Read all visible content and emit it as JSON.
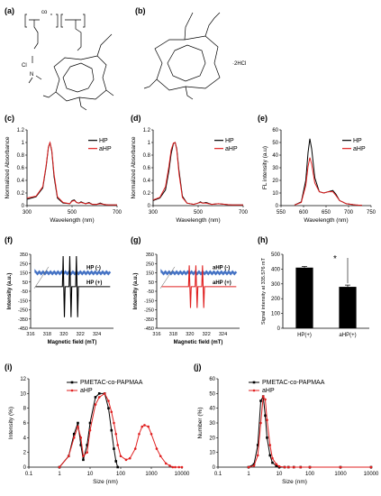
{
  "figure": {
    "panels": {
      "a": {
        "label": "(a)",
        "subscript_co": "co",
        "chloride": "Cl",
        "nitrogen": "N"
      },
      "b": {
        "label": "(b)",
        "salt": "·2HCl"
      },
      "c": {
        "label": "(c)"
      },
      "d": {
        "label": "(d)"
      },
      "e": {
        "label": "(e)"
      },
      "f": {
        "label": "(f)"
      },
      "g": {
        "label": "(g)"
      },
      "h": {
        "label": "(h)"
      },
      "i": {
        "label": "(i)"
      },
      "j": {
        "label": "(j)"
      }
    }
  },
  "chart_data": [
    {
      "panel": "c",
      "type": "line",
      "xlabel": "Wavelength (nm)",
      "ylabel": "Normalized Absorbance",
      "xlim": [
        300,
        700
      ],
      "ylim": [
        0,
        1.2
      ],
      "xticks": [
        "300",
        "500",
        "700"
      ],
      "yticks": [
        "0",
        "0.2",
        "0.4",
        "0.6",
        "0.8",
        "1",
        "1.2"
      ],
      "legend": "top-right",
      "series": [
        {
          "name": "HP",
          "color": "#000000",
          "x": [
            300,
            340,
            370,
            385,
            395,
            402,
            410,
            420,
            435,
            460,
            490,
            500,
            510,
            520,
            530,
            540,
            560,
            575,
            590,
            610,
            625,
            640,
            660,
            700
          ],
          "y": [
            0.1,
            0.14,
            0.28,
            0.62,
            0.92,
            1.0,
            0.86,
            0.46,
            0.12,
            0.04,
            0.03,
            0.08,
            0.09,
            0.05,
            0.04,
            0.06,
            0.03,
            0.05,
            0.02,
            0.02,
            0.04,
            0.02,
            0.01,
            0.01
          ]
        },
        {
          "name": "aHP",
          "color": "#e02020",
          "x": [
            300,
            340,
            370,
            385,
            395,
            402,
            410,
            420,
            435,
            460,
            490,
            500,
            510,
            520,
            530,
            540,
            560,
            575,
            590,
            610,
            625,
            640,
            660,
            700
          ],
          "y": [
            0.12,
            0.15,
            0.3,
            0.64,
            0.93,
            1.0,
            0.88,
            0.5,
            0.14,
            0.05,
            0.03,
            0.07,
            0.08,
            0.05,
            0.04,
            0.05,
            0.03,
            0.04,
            0.02,
            0.02,
            0.03,
            0.02,
            0.01,
            0.01
          ]
        }
      ]
    },
    {
      "panel": "d",
      "type": "line",
      "xlabel": "Wavelength (nm)",
      "ylabel": "Normalized Absorbance",
      "xlim": [
        300,
        700
      ],
      "ylim": [
        0,
        1.2
      ],
      "xticks": [
        "300",
        "500",
        "700"
      ],
      "yticks": [
        "0",
        "0.2",
        "0.4",
        "0.6",
        "0.8",
        "1",
        "1.2"
      ],
      "legend": "top-right",
      "series": [
        {
          "name": "HP",
          "color": "#000000",
          "x": [
            300,
            330,
            355,
            370,
            380,
            390,
            398,
            405,
            415,
            430,
            450,
            480,
            500,
            510,
            520,
            535,
            560,
            590,
            620,
            650,
            700
          ],
          "y": [
            0.08,
            0.12,
            0.25,
            0.55,
            0.82,
            0.98,
            1.0,
            0.9,
            0.55,
            0.15,
            0.04,
            0.02,
            0.04,
            0.06,
            0.04,
            0.05,
            0.02,
            0.03,
            0.02,
            0.01,
            0.01
          ]
        },
        {
          "name": "aHP",
          "color": "#e02020",
          "x": [
            300,
            330,
            355,
            370,
            380,
            390,
            398,
            405,
            415,
            430,
            450,
            480,
            500,
            510,
            520,
            535,
            560,
            590,
            620,
            650,
            700
          ],
          "y": [
            0.09,
            0.13,
            0.3,
            0.62,
            0.88,
            0.99,
            1.0,
            0.88,
            0.5,
            0.13,
            0.04,
            0.02,
            0.04,
            0.05,
            0.04,
            0.04,
            0.02,
            0.03,
            0.02,
            0.01,
            0.01
          ]
        }
      ]
    },
    {
      "panel": "e",
      "type": "line",
      "xlabel": "Wavelength (nm)",
      "ylabel": "FL intensity (a.u)",
      "xlim": [
        550,
        750
      ],
      "ylim": [
        0,
        60
      ],
      "xticks": [
        "550",
        "600",
        "650",
        "700",
        "750"
      ],
      "yticks": [
        "0",
        "10",
        "20",
        "30",
        "40",
        "50",
        "60"
      ],
      "legend": "top-right",
      "series": [
        {
          "name": "HP",
          "color": "#000000",
          "x": [
            580,
            595,
            605,
            610,
            614,
            618,
            625,
            635,
            645,
            655,
            665,
            672,
            680,
            695,
            715,
            730
          ],
          "y": [
            0.5,
            3,
            20,
            42,
            53,
            45,
            22,
            11,
            10,
            11,
            12,
            9,
            4,
            1.5,
            0.5,
            0.2
          ]
        },
        {
          "name": "aHP",
          "color": "#e02020",
          "x": [
            580,
            595,
            605,
            610,
            614,
            618,
            625,
            635,
            645,
            655,
            665,
            672,
            680,
            695,
            715,
            730
          ],
          "y": [
            0.5,
            2.5,
            16,
            31,
            38,
            33,
            18,
            11,
            10,
            11,
            11,
            8,
            4,
            1.5,
            0.5,
            0.2
          ]
        }
      ]
    },
    {
      "panel": "f",
      "type": "line",
      "xlabel": "Magnetic field (mT)",
      "ylabel": "Intensity (a.u.)",
      "xlim": [
        316,
        326
      ],
      "ylim": [
        -450,
        350
      ],
      "xticks": [
        "316",
        "318",
        "320",
        "322",
        "324"
      ],
      "yticks": [
        "350",
        "250",
        "150",
        "50",
        "-50",
        "-150",
        "-250",
        "-350",
        "-450"
      ],
      "legend": "inline",
      "series": [
        {
          "name": "HP (-)",
          "color": "#4472c4",
          "baseline": 150
        },
        {
          "name": "HP (+)",
          "color": "#000000",
          "baseline": 0,
          "peaks": [
            320,
            320.8,
            321.6
          ],
          "amplitude": 330
        }
      ]
    },
    {
      "panel": "g",
      "type": "line",
      "xlabel": "Magnetic field (mT)",
      "ylabel": "Intensity (a.u.)",
      "xlim": [
        316,
        326
      ],
      "ylim": [
        -450,
        350
      ],
      "xticks": [
        "316",
        "318",
        "320",
        "322",
        "324"
      ],
      "yticks": [
        "350",
        "250",
        "150",
        "50",
        "-50",
        "-150",
        "-250",
        "-350",
        "-450"
      ],
      "legend": "inline",
      "series": [
        {
          "name": "aHP (-)",
          "color": "#4472c4",
          "baseline": 150
        },
        {
          "name": "aHP (+)",
          "color": "#e02020",
          "baseline": 0,
          "peaks": [
            320,
            320.8,
            321.6
          ],
          "amplitude": 230
        }
      ]
    },
    {
      "panel": "h",
      "type": "bar",
      "ylabel": "Signal intensity at 335.576 mT",
      "categories": [
        "HP(+)",
        "aHP(+)"
      ],
      "values": [
        410,
        280
      ],
      "errors": [
        8,
        12
      ],
      "ylim": [
        0,
        500
      ],
      "yticks": [
        "0",
        "100",
        "200",
        "300",
        "400",
        "500"
      ],
      "significance": "*"
    },
    {
      "panel": "i",
      "type": "line",
      "xlabel": "Size (nm)",
      "ylabel": "Intensity (%)",
      "xscale": "log",
      "xlim": [
        0.1,
        10000
      ],
      "ylim": [
        0,
        12
      ],
      "xticks": [
        "0.1",
        "1",
        "10",
        "100",
        "1000",
        "10000"
      ],
      "yticks": [
        "0",
        "2",
        "4",
        "6",
        "8",
        "10",
        "12"
      ],
      "legend": "top-right",
      "series": [
        {
          "name": "PMETAC-co-PAPMAA",
          "color": "#000000",
          "x": [
            1,
            2,
            3,
            4,
            5,
            6,
            8,
            10,
            15,
            20,
            30,
            40,
            50,
            60,
            70,
            80
          ],
          "y": [
            0,
            1.5,
            4.5,
            6,
            3,
            1,
            3,
            6,
            9.5,
            10,
            10,
            8,
            5,
            2.5,
            0.8,
            0
          ]
        },
        {
          "name": "aHP",
          "color": "#e02020",
          "x": [
            1,
            2,
            3,
            4,
            5,
            6,
            8,
            10,
            15,
            20,
            30,
            40,
            50,
            60,
            70,
            80,
            100,
            150,
            200,
            300,
            400,
            500,
            600,
            800,
            1000,
            1500,
            2000,
            3000,
            4000,
            5000,
            6000,
            8000,
            10000
          ],
          "y": [
            0,
            1.5,
            4,
            5.5,
            4,
            1.5,
            2,
            5,
            8.5,
            9.5,
            10,
            9,
            7.5,
            6,
            4.5,
            3,
            1.5,
            1,
            1.2,
            2.5,
            4.5,
            5.5,
            5.7,
            5.5,
            4.5,
            2.5,
            1.5,
            0.5,
            0.2,
            0,
            0,
            0,
            0
          ]
        }
      ]
    },
    {
      "panel": "j",
      "type": "line",
      "xlabel": "Size (nm)",
      "ylabel": "Number (%)",
      "xscale": "log",
      "xlim": [
        0.1,
        10000
      ],
      "ylim": [
        0,
        60
      ],
      "xticks": [
        "0.1",
        "1",
        "10",
        "100",
        "1000",
        "10000"
      ],
      "yticks": [
        "0",
        "10",
        "20",
        "30",
        "40",
        "50",
        "60"
      ],
      "legend": "top-right",
      "series": [
        {
          "name": "PMETAC-co-PAPMAA",
          "color": "#000000",
          "x": [
            1,
            1.5,
            2,
            2.5,
            3,
            3.5,
            4,
            5,
            6,
            8,
            10,
            15,
            20,
            30,
            50,
            100,
            1000,
            10000
          ],
          "y": [
            0,
            2,
            15,
            45,
            48,
            35,
            20,
            8,
            3,
            1,
            0,
            0,
            0,
            0,
            0,
            0,
            0,
            0
          ]
        },
        {
          "name": "aHP",
          "color": "#e02020",
          "x": [
            1,
            1.5,
            2,
            2.5,
            3,
            3.5,
            4,
            5,
            6,
            8,
            10,
            15,
            20,
            30,
            50,
            100,
            1000,
            10000
          ],
          "y": [
            0,
            1,
            8,
            30,
            48,
            46,
            32,
            15,
            6,
            2,
            0.5,
            0,
            0,
            0,
            0,
            0,
            0,
            0
          ]
        }
      ]
    }
  ]
}
